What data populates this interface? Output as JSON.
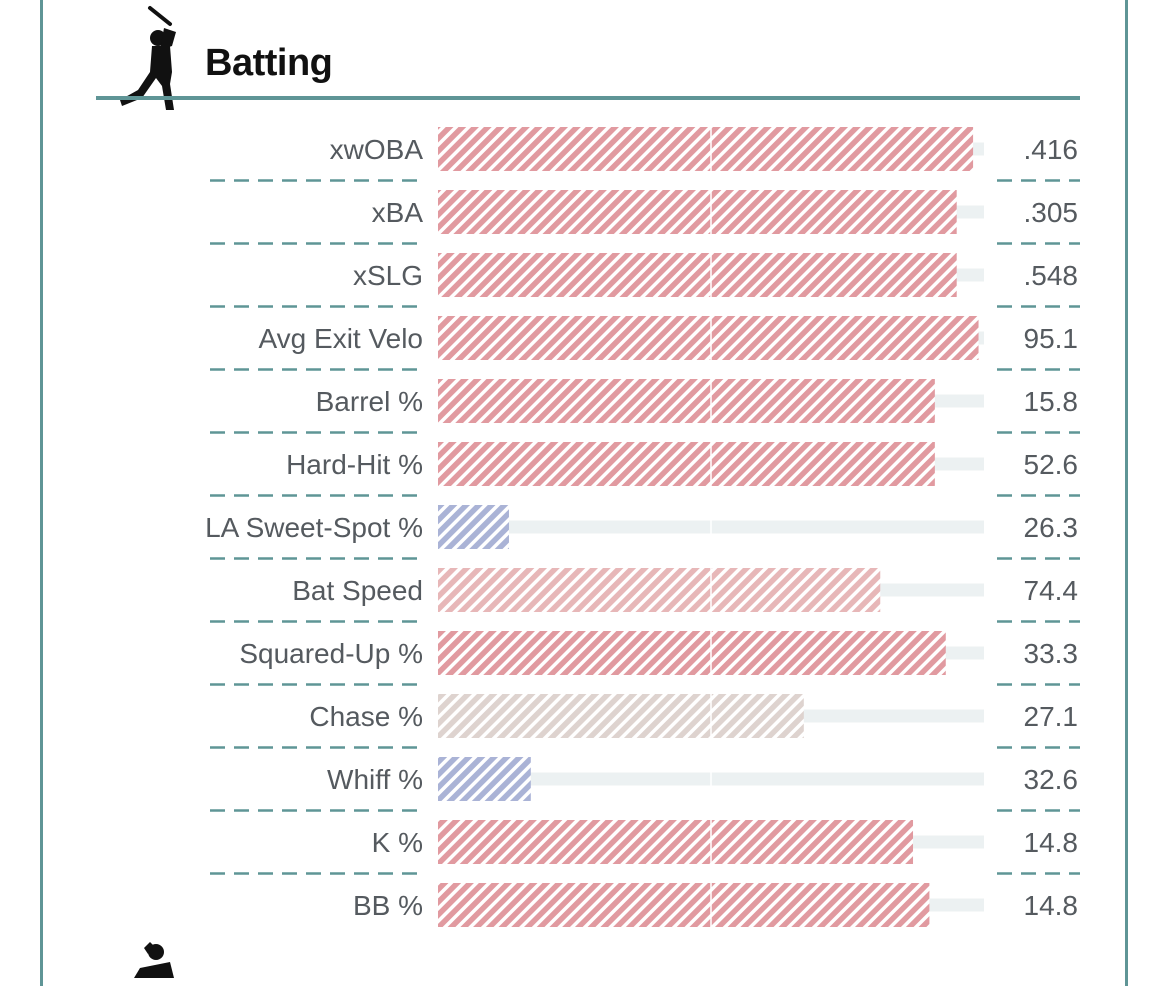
{
  "header": {
    "title": "Batting",
    "icon": "batter-silhouette-icon"
  },
  "footer_icon": "pitcher-silhouette-icon",
  "colors": {
    "frame": "#5f9596",
    "divider": "#5f9596",
    "track": "#ecf1f2",
    "high": "#e19aa0",
    "mid_high": "#e7b7b8",
    "neutral": "#ded3cf",
    "low": "#aab3d6"
  },
  "chart_data": {
    "type": "bar",
    "orientation": "horizontal",
    "categories": [
      "xwOBA",
      "xBA",
      "xSLG",
      "Avg Exit Velo",
      "Barrel %",
      "Hard-Hit %",
      "LA Sweet-Spot %",
      "Bat Speed",
      "Squared-Up %",
      "Chase %",
      "Whiff %",
      "K %",
      "BB %"
    ],
    "labels": [
      ".416",
      ".305",
      ".548",
      "95.1",
      "15.8",
      "52.6",
      "26.3",
      "74.4",
      "33.3",
      "27.1",
      "32.6",
      "14.8",
      "14.8"
    ],
    "percentiles": [
      98,
      95,
      95,
      99,
      91,
      91,
      13,
      81,
      93,
      67,
      17,
      87,
      90
    ],
    "color_level": [
      "high",
      "high",
      "high",
      "high",
      "high",
      "high",
      "low",
      "mid_high",
      "high",
      "neutral",
      "low",
      "high",
      "high"
    ],
    "xlim": [
      0,
      100
    ]
  }
}
